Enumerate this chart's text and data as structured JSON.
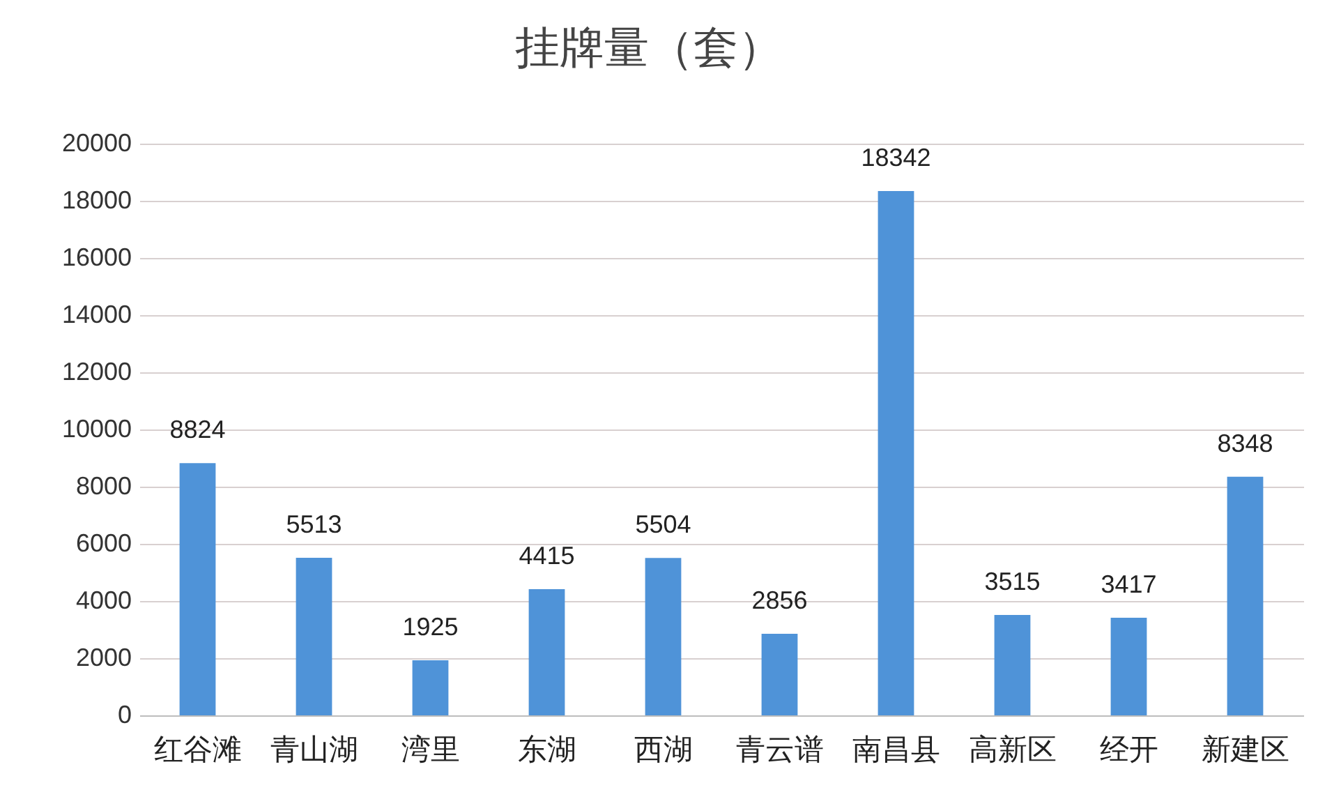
{
  "chart_data": {
    "type": "bar",
    "title": "挂牌量（套）",
    "categories": [
      "红谷滩",
      "青山湖",
      "湾里",
      "东湖",
      "西湖",
      "青云谱",
      "南昌县",
      "高新区",
      "经开",
      "新建区"
    ],
    "values": [
      8824,
      5513,
      1925,
      4415,
      5504,
      2856,
      18342,
      3515,
      3417,
      8348
    ],
    "color": "#4f93d8",
    "ylim": [
      0,
      20000
    ],
    "yticks": [
      0,
      2000,
      4000,
      6000,
      8000,
      10000,
      12000,
      14000,
      16000,
      18000,
      20000
    ],
    "grid": "y",
    "data_labels": true
  }
}
